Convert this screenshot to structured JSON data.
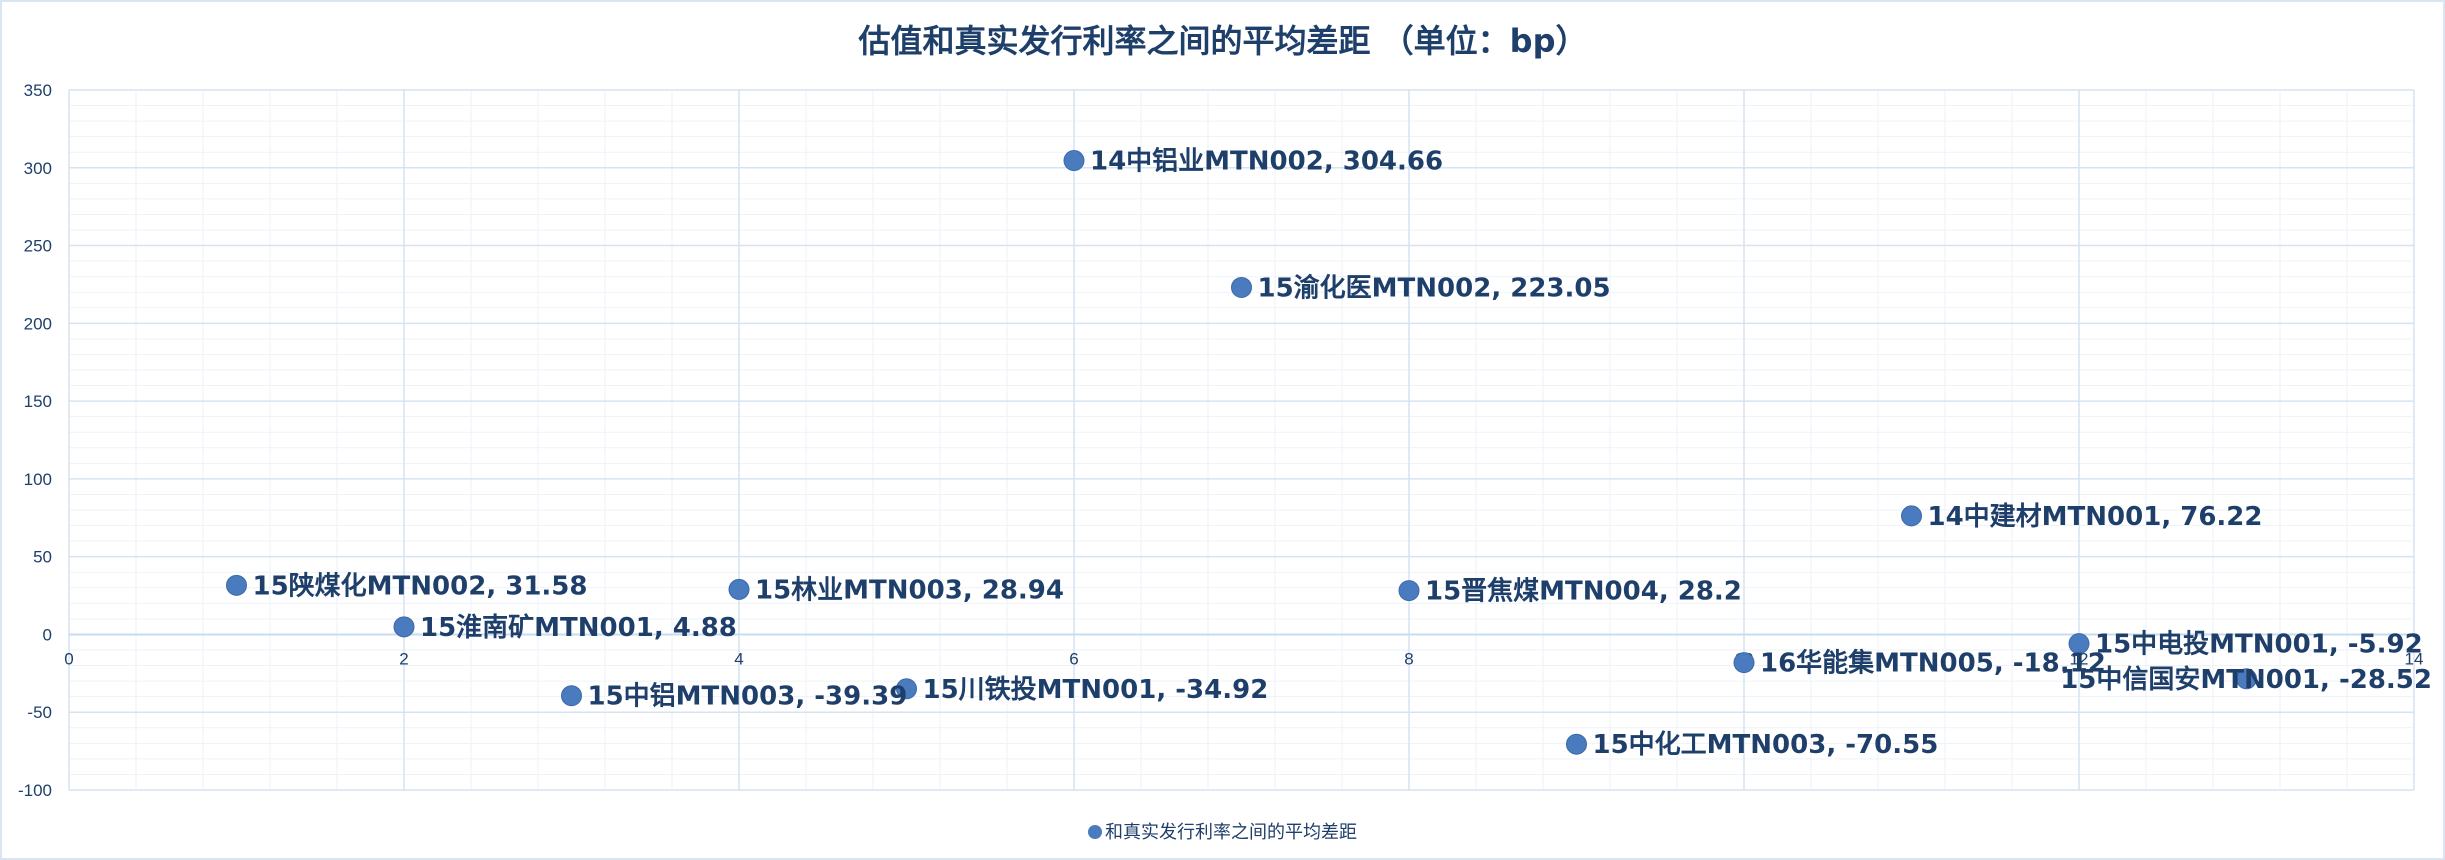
{
  "chart_data": {
    "type": "scatter",
    "title": "估值和真实发行利率之间的平均差距 （单位：bp）",
    "xlabel": "",
    "ylabel": "",
    "xlim": [
      0,
      14
    ],
    "ylim": [
      -100,
      350
    ],
    "x_ticks": [
      0,
      2,
      4,
      6,
      8,
      10,
      12,
      14
    ],
    "y_ticks": [
      -100,
      -50,
      0,
      50,
      100,
      150,
      200,
      250,
      300,
      350
    ],
    "x_minor_step": 0.4,
    "y_minor_step": 10,
    "grid": true,
    "legend_position": "bottom",
    "marker_color": "#4a7bbf",
    "series": [
      {
        "name": "和真实发行利率之间的平均差距",
        "points": [
          {
            "x": 1,
            "y": 31.58,
            "label": "15陕煤化MTN002, 31.58"
          },
          {
            "x": 2,
            "y": 4.88,
            "label": "15淮南矿MTN001, 4.88"
          },
          {
            "x": 3,
            "y": -39.39,
            "label": "15中铝MTN003, -39.39"
          },
          {
            "x": 4,
            "y": 28.94,
            "label": "15林业MTN003, 28.94"
          },
          {
            "x": 5,
            "y": -34.92,
            "label": "15川铁投MTN001, -34.92"
          },
          {
            "x": 6,
            "y": 304.66,
            "label": "14中铝业MTN002, 304.66"
          },
          {
            "x": 7,
            "y": 223.05,
            "label": "15渝化医MTN002, 223.05"
          },
          {
            "x": 8,
            "y": 28.2,
            "label": "15晋焦煤MTN004, 28.2"
          },
          {
            "x": 9,
            "y": -70.55,
            "label": "15中化工MTN003, -70.55"
          },
          {
            "x": 10,
            "y": -18.12,
            "label": "16华能集MTN005, -18.12"
          },
          {
            "x": 11,
            "y": 76.22,
            "label": "14中建材MTN001, 76.22"
          },
          {
            "x": 12,
            "y": -5.92,
            "label": "15中电投MTN001, -5.92"
          },
          {
            "x": 13,
            "y": -28.52,
            "label": "15中信国安MTN001, -28.52"
          }
        ]
      }
    ]
  }
}
